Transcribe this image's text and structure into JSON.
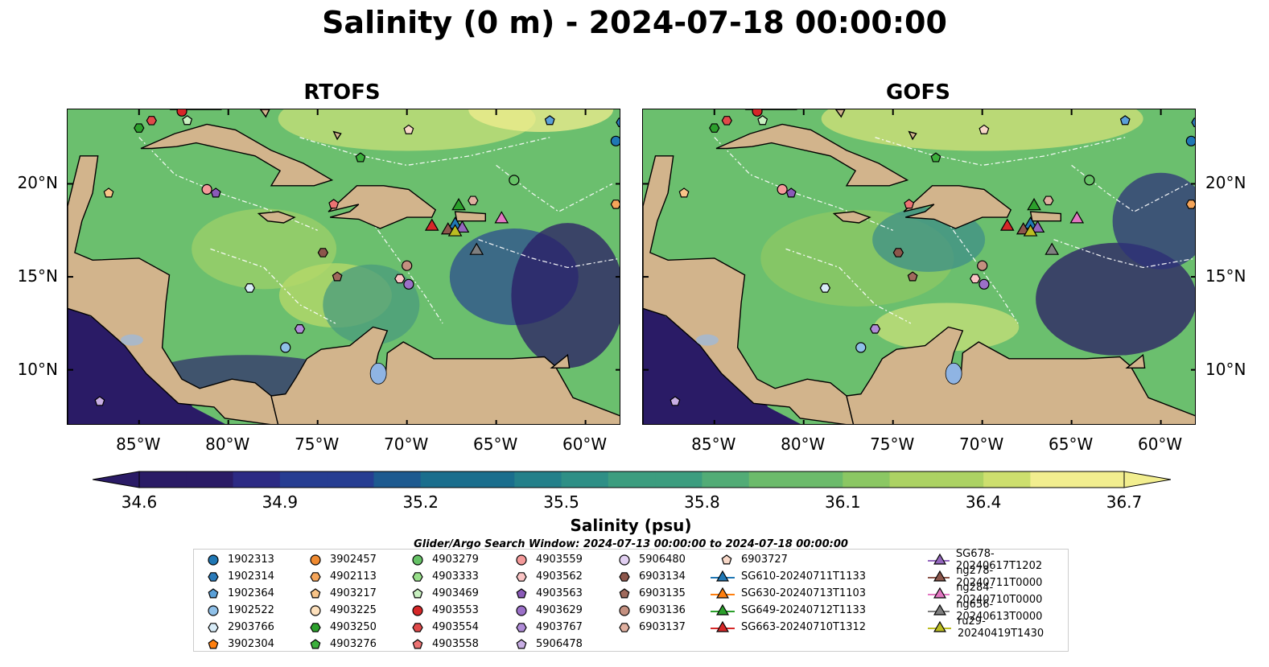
{
  "title": "Salinity (0 m) - 2024-07-18 00:00:00",
  "panels": [
    {
      "title": "RTOFS"
    },
    {
      "title": "GOFS"
    }
  ],
  "lon_ticks": [
    "85°W",
    "80°W",
    "75°W",
    "70°W",
    "65°W",
    "60°W"
  ],
  "lat_ticks": [
    "20°N",
    "15°N",
    "10°N"
  ],
  "map_extent": {
    "lon": [
      -89,
      -58
    ],
    "lat": [
      7,
      24
    ]
  },
  "colorbar": {
    "ticks": [
      "34.6",
      "34.9",
      "35.2",
      "35.5",
      "35.8",
      "36.1",
      "36.4",
      "36.7"
    ],
    "label": "Salinity (psu)",
    "range": [
      34.6,
      36.7
    ],
    "colors": [
      "#2a1b66",
      "#2c2a84",
      "#263d92",
      "#1d5a90",
      "#1a6e8d",
      "#23808a",
      "#2e8f86",
      "#3c9d7f",
      "#52ac76",
      "#6cbb6b",
      "#8bc763",
      "#acd263",
      "#cddf6e",
      "#f2ee8f"
    ]
  },
  "search_window": "Glider/Argo Search Window: 2024-07-13 00:00:00 to 2024-07-18 00:00:00",
  "legend": {
    "items": [
      {
        "label": "1902313",
        "marker": "circle",
        "color": "#1f77b4"
      },
      {
        "label": "1902314",
        "marker": "hexagon",
        "color": "#2b7bba"
      },
      {
        "label": "1902364",
        "marker": "pentagon",
        "color": "#5aa0d8"
      },
      {
        "label": "1902522",
        "marker": "circle",
        "color": "#8fc0e8"
      },
      {
        "label": "2903766",
        "marker": "hexagon",
        "color": "#d8ecf8"
      },
      {
        "label": "3902304",
        "marker": "pentagon",
        "color": "#ff7f0e"
      },
      {
        "label": "3902457",
        "marker": "circle",
        "color": "#f08a30"
      },
      {
        "label": "4902113",
        "marker": "hexagon",
        "color": "#f5a55a"
      },
      {
        "label": "4903217",
        "marker": "pentagon",
        "color": "#f8c488"
      },
      {
        "label": "4903225",
        "marker": "circle",
        "color": "#fde0bc"
      },
      {
        "label": "4903250",
        "marker": "hexagon",
        "color": "#2ca02c"
      },
      {
        "label": "4903276",
        "marker": "pentagon",
        "color": "#3db03d"
      },
      {
        "label": "4903279",
        "marker": "circle",
        "color": "#66c266"
      },
      {
        "label": "4903333",
        "marker": "hexagon",
        "color": "#98df8a"
      },
      {
        "label": "4903469",
        "marker": "pentagon",
        "color": "#c8f0c0"
      },
      {
        "label": "4903553",
        "marker": "circle",
        "color": "#d62728"
      },
      {
        "label": "4903554",
        "marker": "hexagon",
        "color": "#e04a4a"
      },
      {
        "label": "4903558",
        "marker": "pentagon",
        "color": "#ec7373"
      },
      {
        "label": "4903559",
        "marker": "circle",
        "color": "#f49a9a"
      },
      {
        "label": "4903562",
        "marker": "hexagon",
        "color": "#fac4c4"
      },
      {
        "label": "4903563",
        "marker": "pentagon",
        "color": "#8a5ab8"
      },
      {
        "label": "4903629",
        "marker": "circle",
        "color": "#9b70c8"
      },
      {
        "label": "4903767",
        "marker": "hexagon",
        "color": "#b08cd8"
      },
      {
        "label": "5906478",
        "marker": "pentagon",
        "color": "#c8aee4"
      },
      {
        "label": "5906480",
        "marker": "circle",
        "color": "#e2d0f2"
      },
      {
        "label": "6903134",
        "marker": "hexagon",
        "color": "#8c564b"
      },
      {
        "label": "6903135",
        "marker": "pentagon",
        "color": "#a06a5c"
      },
      {
        "label": "6903136",
        "marker": "circle",
        "color": "#c49080"
      },
      {
        "label": "6903137",
        "marker": "hexagon",
        "color": "#e0b0a0"
      },
      {
        "label": "6903727",
        "marker": "pentagon",
        "color": "#f8d8c8"
      },
      {
        "label": "SG610-20240711T1133",
        "marker": "triangle",
        "color": "#1f77b4"
      },
      {
        "label": "SG630-20240713T1103",
        "marker": "triangle",
        "color": "#ff7f0e"
      },
      {
        "label": "SG649-20240712T1133",
        "marker": "triangle",
        "color": "#2ca02c"
      },
      {
        "label": "SG663-20240710T1312",
        "marker": "triangle",
        "color": "#d62728"
      },
      {
        "label": "SG678-20240617T1202",
        "marker": "triangle",
        "color": "#9467bd"
      },
      {
        "label": "ng278-20240711T0000",
        "marker": "triangle",
        "color": "#8c564b"
      },
      {
        "label": "ng284-20240710T0000",
        "marker": "triangle",
        "color": "#e377c2"
      },
      {
        "label": "ng656-20240613T0000",
        "marker": "triangle",
        "color": "#7f7f7f"
      },
      {
        "label": "ru29-20240419T1430",
        "marker": "triangle",
        "color": "#bcbd22"
      }
    ]
  },
  "floats": [
    {
      "id": "1902313",
      "lon": -58.3,
      "lat": 22.3
    },
    {
      "id": "1902314",
      "lon": -58.0,
      "lat": 23.3
    },
    {
      "id": "1902364",
      "lon": -62.0,
      "lat": 23.4
    },
    {
      "id": "1902522",
      "lon": -76.8,
      "lat": 11.2
    },
    {
      "id": "2903766",
      "lon": -78.8,
      "lat": 14.4
    },
    {
      "id": "4903250",
      "lon": -85.0,
      "lat": 23.0
    },
    {
      "id": "4903276",
      "lon": -72.6,
      "lat": 21.4
    },
    {
      "id": "4903279",
      "lon": -64.0,
      "lat": 20.2
    },
    {
      "id": "4903469",
      "lon": -82.3,
      "lat": 23.4
    },
    {
      "id": "4903553",
      "lon": -82.6,
      "lat": 23.9
    },
    {
      "id": "4903554",
      "lon": -84.3,
      "lat": 23.4
    },
    {
      "id": "4903558",
      "lon": -74.1,
      "lat": 18.9
    },
    {
      "id": "4903559",
      "lon": -81.2,
      "lat": 19.7
    },
    {
      "id": "4903562",
      "lon": -70.4,
      "lat": 14.9
    },
    {
      "id": "4903563",
      "lon": -80.7,
      "lat": 19.5
    },
    {
      "id": "4903629",
      "lon": -69.9,
      "lat": 14.6
    },
    {
      "id": "4903767",
      "lon": -76.0,
      "lat": 12.2
    },
    {
      "id": "5906478",
      "lon": -87.2,
      "lat": 8.3
    },
    {
      "id": "6903134",
      "lon": -74.7,
      "lat": 16.3
    },
    {
      "id": "6903135",
      "lon": -73.9,
      "lat": 15.0
    },
    {
      "id": "6903136",
      "lon": -70.0,
      "lat": 15.6
    },
    {
      "id": "6903137",
      "lon": -66.3,
      "lat": 19.1
    },
    {
      "id": "6903727",
      "lon": -69.9,
      "lat": 22.9
    },
    {
      "id": "4903217",
      "lon": -86.7,
      "lat": 19.5
    },
    {
      "id": "4902113",
      "lon": -58.3,
      "lat": 18.9
    }
  ],
  "gliders": [
    {
      "id": "SG610-20240711T1133",
      "lon": -67.3,
      "lat": 17.8
    },
    {
      "id": "SG649-20240712T1133",
      "lon": -67.1,
      "lat": 18.8
    },
    {
      "id": "SG663-20240710T1312",
      "lon": -68.6,
      "lat": 17.7
    },
    {
      "id": "SG678-20240617T1202",
      "lon": -66.9,
      "lat": 17.6
    },
    {
      "id": "ng278-20240711T0000",
      "lon": -67.7,
      "lat": 17.5
    },
    {
      "id": "ng284-20240710T0000",
      "lon": -64.7,
      "lat": 18.1
    },
    {
      "id": "ng656-20240613T0000",
      "lon": -66.1,
      "lat": 16.4
    },
    {
      "id": "ru29-20240419T1430",
      "lon": -67.3,
      "lat": 17.4
    }
  ]
}
